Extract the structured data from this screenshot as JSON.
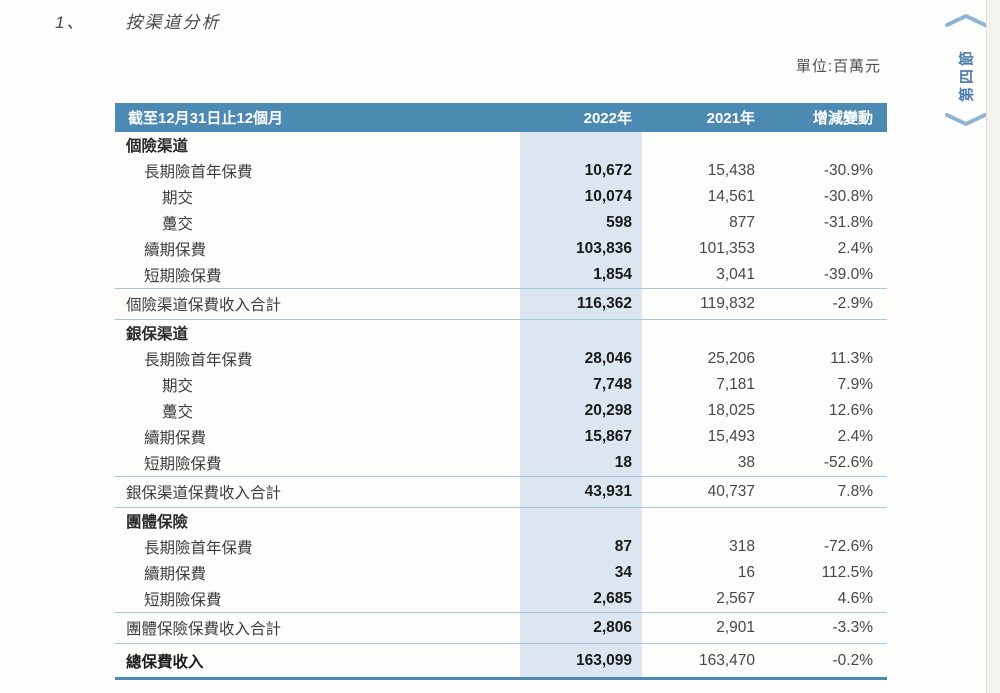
{
  "page": {
    "title_number": "1、",
    "title": "按渠道分析",
    "unit_label": "單位:百萬元"
  },
  "side_tab": {
    "label": "第四節",
    "icons": [
      "chevron-up-icon",
      "chevron-down-icon"
    ]
  },
  "colors": {
    "header_bg": "#4c8ab3",
    "header_text": "#ffffff",
    "highlight_column_bg": "#dbe6f1",
    "separator_line": "#a5c8dd",
    "total_border": "#4c8ab3",
    "side_tab_text": "#4f7fae",
    "chevron": "#8fb3d4"
  },
  "table": {
    "columns": [
      "截至12月31日止12個月",
      "2022年",
      "2021年",
      "增減變動"
    ],
    "rows": [
      {
        "label": "個險渠道",
        "type": "section",
        "indent": 0,
        "values": [
          "",
          "",
          ""
        ]
      },
      {
        "label": "長期險首年保費",
        "type": "data",
        "indent": 1,
        "values": [
          "10,672",
          "15,438",
          "-30.9%"
        ]
      },
      {
        "label": "期交",
        "type": "data",
        "indent": 2,
        "values": [
          "10,074",
          "14,561",
          "-30.8%"
        ]
      },
      {
        "label": "躉交",
        "type": "data",
        "indent": 2,
        "values": [
          "598",
          "877",
          "-31.8%"
        ]
      },
      {
        "label": "續期保費",
        "type": "data",
        "indent": 1,
        "values": [
          "103,836",
          "101,353",
          "2.4%"
        ]
      },
      {
        "label": "短期險保費",
        "type": "data",
        "indent": 1,
        "values": [
          "1,854",
          "3,041",
          "-39.0%"
        ]
      },
      {
        "label": "個險渠道保費收入合計",
        "type": "subtotal",
        "indent": 0,
        "values": [
          "116,362",
          "119,832",
          "-2.9%"
        ]
      },
      {
        "label": "銀保渠道",
        "type": "section",
        "indent": 0,
        "values": [
          "",
          "",
          ""
        ]
      },
      {
        "label": "長期險首年保費",
        "type": "data",
        "indent": 1,
        "values": [
          "28,046",
          "25,206",
          "11.3%"
        ]
      },
      {
        "label": "期交",
        "type": "data",
        "indent": 2,
        "values": [
          "7,748",
          "7,181",
          "7.9%"
        ]
      },
      {
        "label": "躉交",
        "type": "data",
        "indent": 2,
        "values": [
          "20,298",
          "18,025",
          "12.6%"
        ]
      },
      {
        "label": "續期保費",
        "type": "data",
        "indent": 1,
        "values": [
          "15,867",
          "15,493",
          "2.4%"
        ]
      },
      {
        "label": "短期險保費",
        "type": "data",
        "indent": 1,
        "values": [
          "18",
          "38",
          "-52.6%"
        ]
      },
      {
        "label": "銀保渠道保費收入合計",
        "type": "subtotal",
        "indent": 0,
        "values": [
          "43,931",
          "40,737",
          "7.8%"
        ]
      },
      {
        "label": "團體保險",
        "type": "section",
        "indent": 0,
        "values": [
          "",
          "",
          ""
        ]
      },
      {
        "label": "長期險首年保費",
        "type": "data",
        "indent": 1,
        "values": [
          "87",
          "318",
          "-72.6%"
        ]
      },
      {
        "label": "續期保費",
        "type": "data",
        "indent": 1,
        "values": [
          "34",
          "16",
          "112.5%"
        ]
      },
      {
        "label": "短期險保費",
        "type": "data",
        "indent": 1,
        "values": [
          "2,685",
          "2,567",
          "4.6%"
        ]
      },
      {
        "label": "團體保險保費收入合計",
        "type": "subtotal",
        "indent": 0,
        "values": [
          "2,806",
          "2,901",
          "-3.3%"
        ]
      },
      {
        "label": "總保費收入",
        "type": "total",
        "indent": 0,
        "values": [
          "163,099",
          "163,470",
          "-0.2%"
        ]
      }
    ]
  }
}
